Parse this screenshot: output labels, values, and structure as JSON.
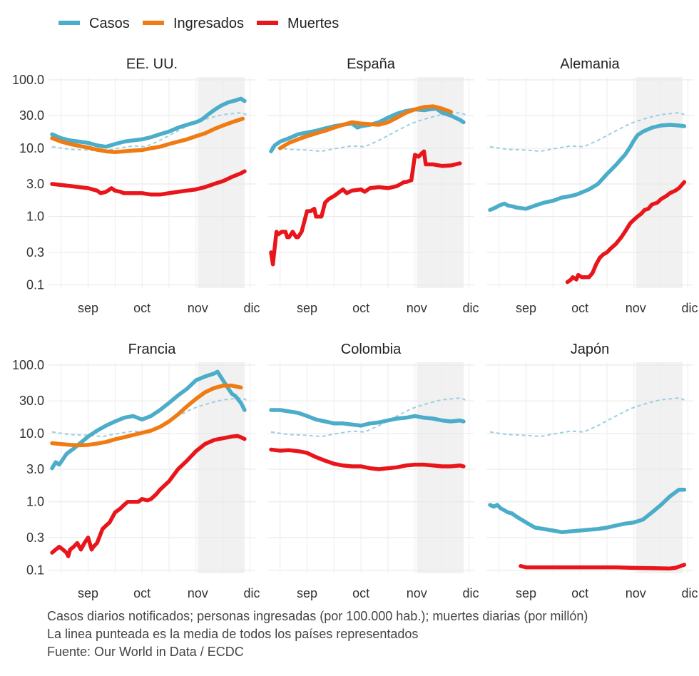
{
  "legend": [
    {
      "label": "Casos",
      "color": "#4badc9"
    },
    {
      "label": "Ingresados",
      "color": "#ef7b12"
    },
    {
      "label": "Muertes",
      "color": "#e8161b"
    }
  ],
  "notes": [
    "Casos diarios notificados; personas ingresadas (por 100.000 hab.); muertes diarias (por millón)",
    "La linea punteada es la media de todos los países representados",
    "Fuente: Our World in Data / ECDC"
  ],
  "chart_data": {
    "type": "line",
    "x_axis": {
      "label_ticks": [
        {
          "label": "sep",
          "day": 0
        },
        {
          "label": "oct",
          "day": 30
        },
        {
          "label": "nov",
          "day": 61
        },
        {
          "label": "dic",
          "day": 91
        }
      ],
      "xlim": [
        -22,
        93
      ]
    },
    "y_axis": {
      "scale": "log",
      "ticks": [
        "100.0",
        "30.0",
        "10.0",
        "3.0",
        "1.0",
        "0.3",
        "0.1"
      ],
      "tick_values": [
        100,
        30,
        10,
        3,
        1,
        0.3,
        0.1
      ],
      "ylim": [
        0.09,
        110
      ]
    },
    "shaded_period": {
      "start_day": 61,
      "end_day": 87
    },
    "average_line": {
      "name": "Media",
      "x": [
        -20,
        -10,
        0,
        8,
        15,
        25,
        32,
        40,
        50,
        58,
        62,
        68,
        75,
        80,
        85,
        88
      ],
      "y": [
        10.5,
        9.6,
        9.4,
        9.0,
        9.8,
        10.8,
        10.5,
        13,
        18,
        23,
        25,
        28,
        31,
        32,
        33,
        31
      ]
    },
    "panels": [
      {
        "title": "EE. UU.",
        "series": [
          {
            "name": "Casos",
            "x": [
              -20,
              -15,
              -10,
              -5,
              0,
              5,
              10,
              15,
              20,
              25,
              30,
              35,
              40,
              45,
              50,
              55,
              60,
              63,
              66,
              70,
              74,
              78,
              82,
              85,
              87
            ],
            "y": [
              16,
              14,
              13,
              12.5,
              12,
              11,
              10.5,
              11.5,
              12.5,
              13,
              13.5,
              14.5,
              16,
              17.5,
              20,
              22,
              24,
              26,
              30,
              36,
              42,
              47,
              50,
              53,
              49
            ]
          },
          {
            "name": "Ingresados",
            "x": [
              -20,
              -15,
              -10,
              -5,
              0,
              5,
              10,
              15,
              20,
              25,
              30,
              35,
              40,
              45,
              50,
              55,
              60,
              65,
              70,
              75,
              80,
              86
            ],
            "y": [
              14,
              12.5,
              11.5,
              10.8,
              10.2,
              9.5,
              9,
              8.8,
              9,
              9.2,
              9.4,
              10,
              10.5,
              11.5,
              12.5,
              13.5,
              15,
              16.5,
              19,
              21.5,
              24,
              27
            ]
          },
          {
            "name": "Muertes",
            "x": [
              -20,
              -15,
              -10,
              -5,
              0,
              5,
              7,
              10,
              13,
              15,
              18,
              20,
              25,
              30,
              35,
              40,
              45,
              50,
              55,
              60,
              65,
              70,
              75,
              80,
              85,
              87
            ],
            "y": [
              3.0,
              2.9,
              2.8,
              2.7,
              2.6,
              2.4,
              2.2,
              2.3,
              2.6,
              2.4,
              2.3,
              2.2,
              2.2,
              2.2,
              2.1,
              2.1,
              2.2,
              2.3,
              2.4,
              2.5,
              2.7,
              3.0,
              3.3,
              3.8,
              4.3,
              4.6
            ]
          }
        ]
      },
      {
        "title": "España",
        "series": [
          {
            "name": "Casos",
            "x": [
              -20,
              -18,
              -15,
              -10,
              -5,
              0,
              5,
              10,
              15,
              20,
              25,
              28,
              30,
              35,
              40,
              45,
              50,
              55,
              60,
              65,
              68,
              72,
              75,
              80,
              85,
              87
            ],
            "y": [
              9,
              11,
              12.5,
              14,
              16,
              17,
              18,
              19.5,
              21,
              22,
              23,
              20,
              21,
              22,
              24,
              28,
              32,
              35,
              37,
              36,
              37,
              38,
              33,
              30,
              26,
              24
            ]
          },
          {
            "name": "Ingresados",
            "x": [
              -15,
              -10,
              -5,
              0,
              5,
              10,
              15,
              20,
              25,
              30,
              35,
              40,
              45,
              50,
              55,
              60,
              65,
              70,
              75,
              80
            ],
            "y": [
              10,
              12,
              13.5,
              15,
              16.5,
              18,
              20,
              22,
              24,
              23,
              22.5,
              22,
              24,
              28,
              33,
              37,
              40,
              41,
              38,
              34
            ]
          },
          {
            "name": "Muertes",
            "x": [
              -20,
              -19,
              -18,
              -17,
              -16,
              -14,
              -12,
              -11,
              -10,
              -8,
              -6,
              -5,
              -3,
              0,
              2,
              4,
              5,
              6,
              8,
              10,
              12,
              15,
              20,
              22,
              25,
              30,
              32,
              35,
              40,
              45,
              50,
              54,
              55,
              58,
              60,
              62,
              64,
              65,
              66,
              70,
              75,
              80,
              85
            ],
            "y": [
              0.3,
              0.2,
              0.35,
              0.6,
              0.55,
              0.6,
              0.6,
              0.5,
              0.5,
              0.6,
              0.5,
              0.5,
              0.6,
              1.2,
              1.2,
              1.3,
              1.0,
              1.0,
              1.0,
              1.6,
              1.8,
              2.0,
              2.5,
              2.2,
              2.4,
              2.5,
              2.3,
              2.6,
              2.7,
              2.6,
              2.8,
              3.2,
              3.2,
              3.4,
              8.0,
              7.5,
              8.5,
              9.0,
              5.8,
              5.8,
              5.5,
              5.6,
              6.0
            ]
          }
        ]
      },
      {
        "title": "Alemania",
        "series": [
          {
            "name": "Casos",
            "x": [
              -20,
              -17,
              -15,
              -12,
              -10,
              -7,
              -5,
              0,
              5,
              10,
              15,
              20,
              25,
              28,
              30,
              35,
              40,
              45,
              50,
              53,
              55,
              58,
              60,
              62,
              65,
              70,
              75,
              80,
              85,
              88
            ],
            "y": [
              1.25,
              1.35,
              1.45,
              1.55,
              1.45,
              1.4,
              1.35,
              1.3,
              1.45,
              1.6,
              1.7,
              1.9,
              2.0,
              2.1,
              2.2,
              2.5,
              3.0,
              4.2,
              5.7,
              7.0,
              8.0,
              10.5,
              13,
              15.5,
              17.5,
              20,
              21.5,
              22,
              21.5,
              21
            ]
          },
          {
            "name": "Muertes",
            "x": [
              23,
              25,
              26,
              28,
              29,
              31,
              33,
              35,
              37,
              39,
              41,
              43,
              45,
              47,
              50,
              53,
              55,
              58,
              60,
              62,
              64,
              66,
              68,
              70,
              73,
              75,
              78,
              80,
              83,
              85,
              88
            ],
            "y": [
              0.11,
              0.12,
              0.13,
              0.12,
              0.14,
              0.13,
              0.13,
              0.13,
              0.15,
              0.2,
              0.25,
              0.28,
              0.3,
              0.34,
              0.4,
              0.5,
              0.6,
              0.8,
              0.9,
              1.0,
              1.1,
              1.25,
              1.3,
              1.5,
              1.6,
              1.8,
              2.0,
              2.2,
              2.4,
              2.6,
              3.2
            ]
          }
        ]
      },
      {
        "title": "Francia",
        "series": [
          {
            "name": "Casos",
            "x": [
              -20,
              -18,
              -16,
              -14,
              -12,
              -10,
              -8,
              -5,
              0,
              5,
              10,
              15,
              20,
              25,
              30,
              35,
              40,
              45,
              50,
              55,
              60,
              65,
              70,
              72,
              75,
              78,
              80,
              82,
              85,
              87
            ],
            "y": [
              3.1,
              3.8,
              3.5,
              4.2,
              5.0,
              5.5,
              6.0,
              7.0,
              9.0,
              11,
              13,
              15,
              17,
              18,
              16,
              18,
              22,
              28,
              36,
              45,
              60,
              68,
              75,
              80,
              60,
              45,
              38,
              35,
              28,
              22
            ]
          },
          {
            "name": "Ingresados",
            "x": [
              -20,
              -15,
              -10,
              -5,
              0,
              5,
              10,
              15,
              20,
              25,
              30,
              35,
              40,
              45,
              50,
              55,
              60,
              65,
              70,
              75,
              80,
              85
            ],
            "y": [
              7.2,
              7.0,
              6.8,
              6.7,
              6.8,
              7.1,
              7.5,
              8.2,
              8.8,
              9.5,
              10.2,
              11,
              12.5,
              15,
              19,
              25,
              32,
              40,
              46,
              50,
              50,
              47
            ]
          },
          {
            "name": "Muertes",
            "x": [
              -20,
              -18,
              -16,
              -14,
              -12,
              -11,
              -10,
              -8,
              -6,
              -4,
              -2,
              0,
              2,
              3,
              5,
              8,
              10,
              12,
              15,
              18,
              20,
              22,
              25,
              28,
              30,
              33,
              35,
              38,
              40,
              45,
              50,
              55,
              60,
              65,
              70,
              75,
              80,
              83,
              85,
              87
            ],
            "y": [
              0.18,
              0.2,
              0.22,
              0.2,
              0.18,
              0.16,
              0.2,
              0.22,
              0.25,
              0.2,
              0.25,
              0.3,
              0.2,
              0.22,
              0.25,
              0.4,
              0.45,
              0.5,
              0.7,
              0.8,
              0.9,
              1.0,
              1.0,
              1.0,
              1.1,
              1.05,
              1.1,
              1.3,
              1.5,
              2.0,
              3.0,
              4.0,
              5.5,
              7.0,
              8.0,
              8.5,
              9.0,
              9.2,
              8.8,
              8.3
            ]
          }
        ]
      },
      {
        "title": "Colombia",
        "series": [
          {
            "name": "Casos",
            "x": [
              -20,
              -15,
              -10,
              -5,
              0,
              5,
              10,
              15,
              20,
              25,
              30,
              35,
              40,
              45,
              50,
              55,
              60,
              65,
              70,
              75,
              80,
              85,
              87
            ],
            "y": [
              22,
              22,
              21,
              20,
              18,
              16,
              15,
              14,
              14,
              13.5,
              13,
              14,
              14.5,
              15.5,
              16.5,
              17,
              18,
              17,
              16.5,
              15.5,
              15,
              15.5,
              15
            ]
          },
          {
            "name": "Muertes",
            "x": [
              -20,
              -15,
              -10,
              -5,
              0,
              5,
              10,
              15,
              20,
              25,
              30,
              35,
              40,
              45,
              50,
              55,
              60,
              65,
              70,
              75,
              80,
              85,
              87
            ],
            "y": [
              5.8,
              5.6,
              5.7,
              5.5,
              5.2,
              4.5,
              4.0,
              3.6,
              3.4,
              3.3,
              3.3,
              3.1,
              3.0,
              3.1,
              3.2,
              3.4,
              3.5,
              3.5,
              3.4,
              3.3,
              3.3,
              3.4,
              3.3
            ]
          }
        ]
      },
      {
        "title": "Japón",
        "series": [
          {
            "name": "Casos",
            "x": [
              -20,
              -18,
              -16,
              -14,
              -12,
              -10,
              -8,
              -5,
              0,
              5,
              10,
              15,
              20,
              25,
              30,
              35,
              40,
              45,
              50,
              55,
              60,
              65,
              70,
              75,
              80,
              85,
              88
            ],
            "y": [
              0.9,
              0.85,
              0.9,
              0.8,
              0.75,
              0.7,
              0.68,
              0.6,
              0.5,
              0.42,
              0.4,
              0.38,
              0.36,
              0.37,
              0.38,
              0.39,
              0.4,
              0.42,
              0.45,
              0.48,
              0.5,
              0.55,
              0.7,
              0.9,
              1.2,
              1.5,
              1.5
            ]
          },
          {
            "name": "Muertes",
            "x": [
              -3,
              0,
              10,
              20,
              30,
              40,
              50,
              60,
              70,
              80,
              83,
              86,
              88
            ],
            "y": [
              0.115,
              0.11,
              0.11,
              0.11,
              0.11,
              0.11,
              0.11,
              0.108,
              0.107,
              0.106,
              0.108,
              0.115,
              0.12
            ]
          }
        ]
      }
    ]
  }
}
